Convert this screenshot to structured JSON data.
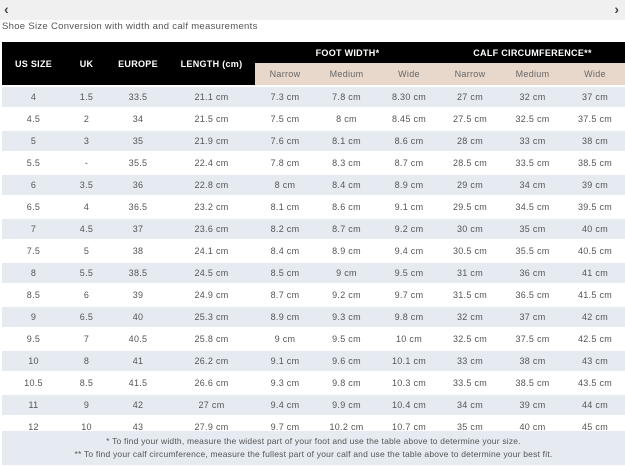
{
  "nav": {
    "prev_icon": "chevron-left-icon",
    "next_icon": "chevron-right-icon"
  },
  "title": "Shoe Size Conversion with width and calf measurements",
  "headers": {
    "us": "US SIZE",
    "uk": "UK",
    "europe": "EUROPE",
    "length": "LENGTH (cm)",
    "foot_width": "FOOT WIDTH*",
    "calf": "CALF CIRCUMFERENCE**",
    "sub": [
      "Narrow",
      "Medium",
      "Wide",
      "Narrow",
      "Medium",
      "Wide"
    ]
  },
  "rows": [
    [
      "4",
      "1.5",
      "33.5",
      "21.1 cm",
      "7.3 cm",
      "7.8 cm",
      "8.30 cm",
      "27 cm",
      "32 cm",
      "37 cm"
    ],
    [
      "4.5",
      "2",
      "34",
      "21.5 cm",
      "7.5 cm",
      "8 cm",
      "8.45 cm",
      "27.5 cm",
      "32.5 cm",
      "37.5 cm"
    ],
    [
      "5",
      "3",
      "35",
      "21.9 cm",
      "7.6 cm",
      "8.1 cm",
      "8.6 cm",
      "28 cm",
      "33 cm",
      "38 cm"
    ],
    [
      "5.5",
      "-",
      "35.5",
      "22.4 cm",
      "7.8 cm",
      "8.3 cm",
      "8.7 cm",
      "28.5 cm",
      "33.5 cm",
      "38.5 cm"
    ],
    [
      "6",
      "3.5",
      "36",
      "22.8 cm",
      "8 cm",
      "8.4 cm",
      "8.9 cm",
      "29 cm",
      "34 cm",
      "39 cm"
    ],
    [
      "6.5",
      "4",
      "36.5",
      "23.2 cm",
      "8.1 cm",
      "8.6 cm",
      "9.1 cm",
      "29.5 cm",
      "34.5 cm",
      "39.5 cm"
    ],
    [
      "7",
      "4.5",
      "37",
      "23.6 cm",
      "8.2 cm",
      "8.7 cm",
      "9.2 cm",
      "30 cm",
      "35 cm",
      "40 cm"
    ],
    [
      "7.5",
      "5",
      "38",
      "24.1 cm",
      "8.4 cm",
      "8.9 cm",
      "9.4 cm",
      "30.5 cm",
      "35.5 cm",
      "40.5 cm"
    ],
    [
      "8",
      "5.5",
      "38.5",
      "24.5 cm",
      "8.5 cm",
      "9 cm",
      "9.5 cm",
      "31 cm",
      "36 cm",
      "41 cm"
    ],
    [
      "8.5",
      "6",
      "39",
      "24.9 cm",
      "8.7 cm",
      "9.2 cm",
      "9.7 cm",
      "31.5 cm",
      "36.5 cm",
      "41.5 cm"
    ],
    [
      "9",
      "6.5",
      "40",
      "25.3 cm",
      "8.9 cm",
      "9.3 cm",
      "9.8 cm",
      "32 cm",
      "37 cm",
      "42 cm"
    ],
    [
      "9.5",
      "7",
      "40.5",
      "25.8 cm",
      "9 cm",
      "9.5 cm",
      "10 cm",
      "32.5 cm",
      "37.5 cm",
      "42.5 cm"
    ],
    [
      "10",
      "8",
      "41",
      "26.2 cm",
      "9.1 cm",
      "9.6 cm",
      "10.1 cm",
      "33 cm",
      "38 cm",
      "43 cm"
    ],
    [
      "10.5",
      "8.5",
      "41.5",
      "26.6 cm",
      "9.3 cm",
      "9.8 cm",
      "10.3 cm",
      "33.5 cm",
      "38.5 cm",
      "43.5 cm"
    ],
    [
      "11",
      "9",
      "42",
      "27 cm",
      "9.4 cm",
      "9.9 cm",
      "10.4 cm",
      "34 cm",
      "39 cm",
      "44 cm"
    ],
    [
      "12",
      "10",
      "43",
      "27.9 cm",
      "9.7 cm",
      "10.2 cm",
      "10.7 cm",
      "35 cm",
      "40 cm",
      "45 cm"
    ]
  ],
  "footnotes": [
    "* To find your width, measure the widest part of your foot and use the table above to determine your size.",
    "** To find your calf circumference, measure the fullest part of your calf and use the table above to determine your best fit."
  ]
}
